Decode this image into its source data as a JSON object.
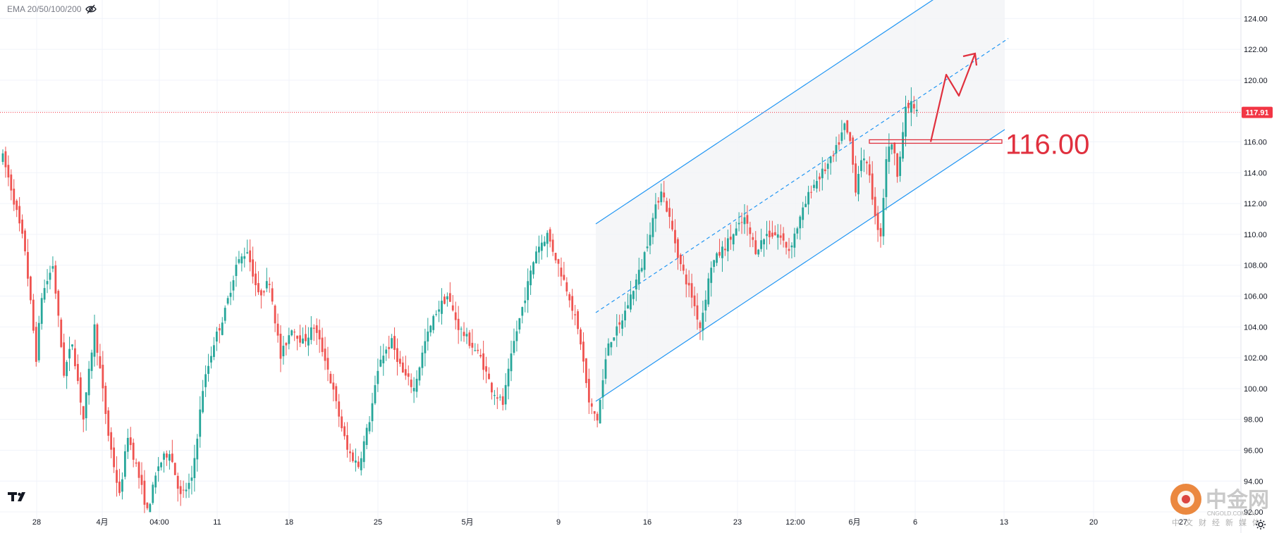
{
  "indicator": {
    "label": "EMA 20/50/100/200",
    "icon": "eye-hidden-icon"
  },
  "colors": {
    "up": "#26a69a",
    "down": "#ef5350",
    "channel": "#2196f3",
    "annotation": "#e0303e",
    "price_label_bg": "#f23645",
    "grid": "#f0f3fa",
    "axis_text": "#131722"
  },
  "chart_data": {
    "type": "candlestick",
    "title": "",
    "ylim": [
      91.5,
      125.2
    ],
    "y_ticks": [
      "92.00",
      "94.00",
      "96.00",
      "98.00",
      "100.00",
      "102.00",
      "104.00",
      "106.00",
      "108.00",
      "110.00",
      "112.00",
      "114.00",
      "116.00",
      "118.00",
      "120.00",
      "122.00",
      "124.00"
    ],
    "x_labels": [
      "28",
      "4月",
      "04:00",
      "11",
      "18",
      "25",
      "5月",
      "9",
      "16",
      "23",
      "12:00",
      "6月",
      "6",
      "13",
      "20",
      "27"
    ],
    "last_price": "117.91",
    "level_label": "116.00",
    "swings": [
      [
        0,
        115
      ],
      [
        3,
        113
      ],
      [
        8,
        109
      ],
      [
        12,
        102
      ],
      [
        14,
        106
      ],
      [
        18,
        108
      ],
      [
        22,
        101
      ],
      [
        25,
        103
      ],
      [
        29,
        98
      ],
      [
        33,
        104
      ],
      [
        38,
        97
      ],
      [
        42,
        93
      ],
      [
        45,
        97
      ],
      [
        48,
        95
      ],
      [
        52,
        92
      ],
      [
        56,
        95
      ],
      [
        60,
        96
      ],
      [
        64,
        93
      ],
      [
        68,
        94
      ],
      [
        72,
        100
      ],
      [
        76,
        103
      ],
      [
        80,
        105
      ],
      [
        84,
        108
      ],
      [
        88,
        109
      ],
      [
        92,
        106
      ],
      [
        96,
        107
      ],
      [
        100,
        102
      ],
      [
        104,
        104
      ],
      [
        108,
        103
      ],
      [
        112,
        104
      ],
      [
        116,
        102
      ],
      [
        120,
        99
      ],
      [
        124,
        96
      ],
      [
        128,
        95
      ],
      [
        132,
        98
      ],
      [
        136,
        102
      ],
      [
        140,
        103
      ],
      [
        144,
        101
      ],
      [
        148,
        100
      ],
      [
        152,
        103
      ],
      [
        156,
        105
      ],
      [
        160,
        106
      ],
      [
        164,
        104
      ],
      [
        168,
        103
      ],
      [
        172,
        102
      ],
      [
        176,
        100
      ],
      [
        180,
        99
      ],
      [
        184,
        103
      ],
      [
        188,
        106
      ],
      [
        192,
        109
      ],
      [
        196,
        110
      ],
      [
        200,
        108
      ],
      [
        204,
        106
      ],
      [
        208,
        103
      ],
      [
        211,
        99
      ],
      [
        214,
        98
      ],
      [
        218,
        103
      ],
      [
        222,
        104
      ],
      [
        226,
        106
      ],
      [
        230,
        108
      ],
      [
        234,
        111
      ],
      [
        237,
        113
      ],
      [
        240,
        111
      ],
      [
        244,
        108
      ],
      [
        248,
        106
      ],
      [
        251,
        104
      ],
      [
        255,
        108
      ],
      [
        259,
        109
      ],
      [
        263,
        110
      ],
      [
        267,
        111
      ],
      [
        271,
        109
      ],
      [
        275,
        110
      ],
      [
        279,
        110
      ],
      [
        283,
        109
      ],
      [
        287,
        111
      ],
      [
        291,
        113
      ],
      [
        295,
        114
      ],
      [
        299,
        115
      ],
      [
        303,
        117
      ],
      [
        305,
        116
      ],
      [
        307,
        113
      ],
      [
        309,
        115
      ],
      [
        312,
        114
      ],
      [
        314,
        111
      ],
      [
        316,
        110
      ],
      [
        318,
        115
      ],
      [
        320,
        116
      ],
      [
        322,
        114
      ],
      [
        325,
        118
      ],
      [
        327,
        118.5
      ],
      [
        329,
        117.9
      ]
    ]
  }
}
